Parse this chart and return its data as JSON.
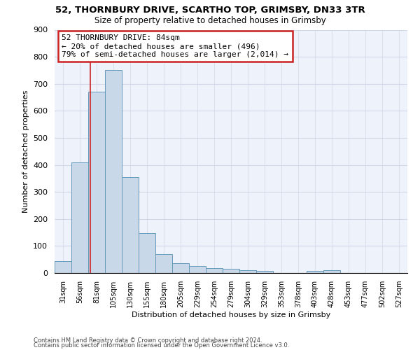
{
  "title1": "52, THORNBURY DRIVE, SCARTHO TOP, GRIMSBY, DN33 3TR",
  "title2": "Size of property relative to detached houses in Grimsby",
  "xlabel": "Distribution of detached houses by size in Grimsby",
  "ylabel": "Number of detached properties",
  "categories": [
    "31sqm",
    "56sqm",
    "81sqm",
    "105sqm",
    "130sqm",
    "155sqm",
    "180sqm",
    "205sqm",
    "229sqm",
    "254sqm",
    "279sqm",
    "304sqm",
    "329sqm",
    "353sqm",
    "378sqm",
    "403sqm",
    "428sqm",
    "453sqm",
    "477sqm",
    "502sqm",
    "527sqm"
  ],
  "values": [
    45,
    410,
    670,
    750,
    355,
    148,
    70,
    35,
    27,
    18,
    15,
    10,
    8,
    0,
    0,
    8,
    10,
    0,
    0,
    0,
    0
  ],
  "bar_color": "#c8d8e8",
  "bar_edge_color": "#6699bb",
  "grid_color": "#d0d8e8",
  "background_color": "#eef2fa",
  "annotation_line1": "52 THORNBURY DRIVE: 84sqm",
  "annotation_line2": "← 20% of detached houses are smaller (496)",
  "annotation_line3": "79% of semi-detached houses are larger (2,014) →",
  "annotation_box_facecolor": "#ffffff",
  "annotation_box_edgecolor": "#cc2222",
  "marker_line_color": "#cc2222",
  "ylim": [
    0,
    900
  ],
  "yticks": [
    0,
    100,
    200,
    300,
    400,
    500,
    600,
    700,
    800,
    900
  ],
  "footer1": "Contains HM Land Registry data © Crown copyright and database right 2024.",
  "footer2": "Contains public sector information licensed under the Open Government Licence v3.0."
}
